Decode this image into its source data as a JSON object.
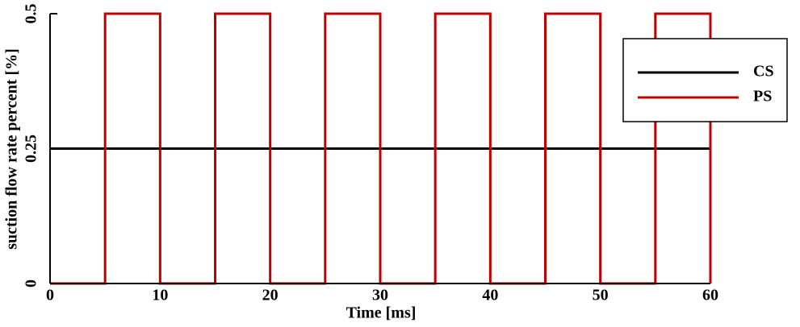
{
  "chart_data": {
    "type": "line",
    "x_label": "Time [ms]",
    "y_label": "suction flow rate percent [%]",
    "xlim": [
      0,
      60
    ],
    "xticks": [
      0,
      10,
      20,
      30,
      40,
      50,
      60
    ],
    "ylim": [
      0,
      0.5
    ],
    "yticks": [
      0,
      0.25,
      0.5
    ],
    "legend": "upper right",
    "series": [
      {
        "name": "CS",
        "color": "#000000",
        "x": [
          0,
          60
        ],
        "values": [
          0.25,
          0.25
        ]
      },
      {
        "name": "PS",
        "color": "#c00000",
        "x": [
          0,
          5,
          5,
          10,
          10,
          15,
          15,
          20,
          20,
          25,
          25,
          30,
          30,
          35,
          35,
          40,
          40,
          45,
          45,
          50,
          50,
          55,
          55,
          60,
          60
        ],
        "values": [
          0,
          0,
          0.5,
          0.5,
          0,
          0,
          0.5,
          0.5,
          0,
          0,
          0.5,
          0.5,
          0,
          0,
          0.5,
          0.5,
          0,
          0,
          0.5,
          0.5,
          0,
          0,
          0.5,
          0.5,
          0
        ]
      }
    ]
  }
}
